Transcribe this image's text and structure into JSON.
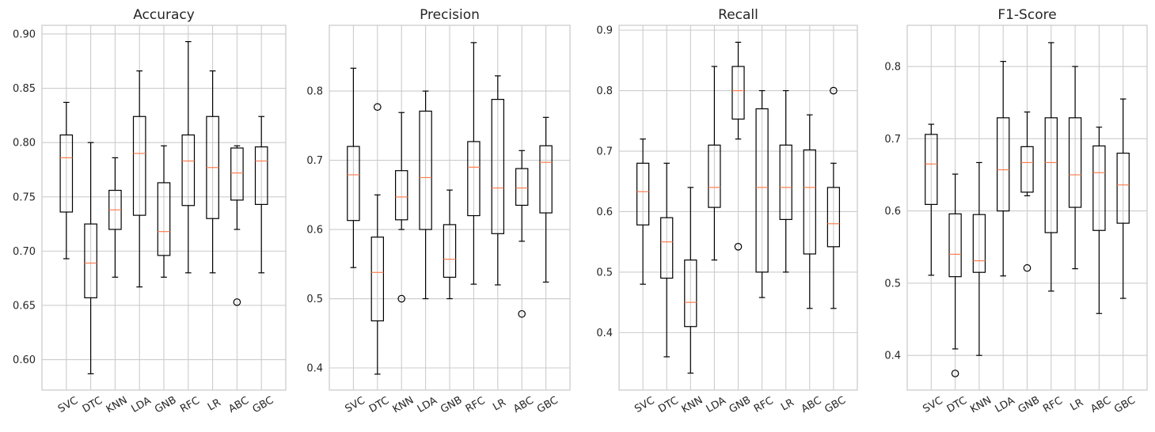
{
  "chart_data": [
    {
      "type": "box",
      "title": "Accuracy",
      "categories": [
        "SVC",
        "DTC",
        "KNN",
        "LDA",
        "GNB",
        "RFC",
        "LR",
        "ABC",
        "GBC"
      ],
      "ylim": [
        0.572,
        0.908
      ],
      "yticks": [
        0.6,
        0.65,
        0.7,
        0.75,
        0.8,
        0.85,
        0.9
      ],
      "ytick_labels": [
        "0.60",
        "0.65",
        "0.70",
        "0.75",
        "0.80",
        "0.85",
        "0.90"
      ],
      "grid": true,
      "boxes": [
        {
          "whislo": 0.693,
          "q1": 0.736,
          "med": 0.786,
          "q3": 0.807,
          "whishi": 0.837,
          "fliers": []
        },
        {
          "whislo": 0.587,
          "q1": 0.657,
          "med": 0.689,
          "q3": 0.725,
          "whishi": 0.8,
          "fliers": []
        },
        {
          "whislo": 0.676,
          "q1": 0.72,
          "med": 0.738,
          "q3": 0.756,
          "whishi": 0.786,
          "fliers": []
        },
        {
          "whislo": 0.667,
          "q1": 0.733,
          "med": 0.79,
          "q3": 0.824,
          "whishi": 0.866,
          "fliers": []
        },
        {
          "whislo": 0.676,
          "q1": 0.696,
          "med": 0.718,
          "q3": 0.763,
          "whishi": 0.797,
          "fliers": []
        },
        {
          "whislo": 0.68,
          "q1": 0.742,
          "med": 0.783,
          "q3": 0.807,
          "whishi": 0.893,
          "fliers": []
        },
        {
          "whislo": 0.68,
          "q1": 0.73,
          "med": 0.777,
          "q3": 0.824,
          "whishi": 0.866,
          "fliers": []
        },
        {
          "whislo": 0.72,
          "q1": 0.747,
          "med": 0.772,
          "q3": 0.795,
          "whishi": 0.797,
          "fliers": [
            0.653
          ]
        },
        {
          "whislo": 0.68,
          "q1": 0.743,
          "med": 0.783,
          "q3": 0.796,
          "whishi": 0.824,
          "fliers": []
        }
      ]
    },
    {
      "type": "box",
      "title": "Precision",
      "categories": [
        "SVC",
        "DTC",
        "KNN",
        "LDA",
        "GNB",
        "RFC",
        "LR",
        "ABC",
        "GBC"
      ],
      "ylim": [
        0.368,
        0.895
      ],
      "yticks": [
        0.4,
        0.5,
        0.6,
        0.7,
        0.8
      ],
      "ytick_labels": [
        "0.4",
        "0.5",
        "0.6",
        "0.7",
        "0.8"
      ],
      "grid": true,
      "boxes": [
        {
          "whislo": 0.545,
          "q1": 0.613,
          "med": 0.679,
          "q3": 0.72,
          "whishi": 0.833,
          "fliers": []
        },
        {
          "whislo": 0.391,
          "q1": 0.468,
          "med": 0.538,
          "q3": 0.589,
          "whishi": 0.65,
          "fliers": [
            0.777
          ]
        },
        {
          "whislo": 0.6,
          "q1": 0.614,
          "med": 0.647,
          "q3": 0.685,
          "whishi": 0.769,
          "fliers": [
            0.5
          ]
        },
        {
          "whislo": 0.5,
          "q1": 0.6,
          "med": 0.675,
          "q3": 0.771,
          "whishi": 0.8,
          "fliers": []
        },
        {
          "whislo": 0.5,
          "q1": 0.531,
          "med": 0.557,
          "q3": 0.607,
          "whishi": 0.657,
          "fliers": []
        },
        {
          "whislo": 0.521,
          "q1": 0.62,
          "med": 0.69,
          "q3": 0.727,
          "whishi": 0.87,
          "fliers": []
        },
        {
          "whislo": 0.52,
          "q1": 0.594,
          "med": 0.66,
          "q3": 0.788,
          "whishi": 0.822,
          "fliers": []
        },
        {
          "whislo": 0.583,
          "q1": 0.635,
          "med": 0.66,
          "q3": 0.688,
          "whishi": 0.714,
          "fliers": [
            0.478
          ]
        },
        {
          "whislo": 0.524,
          "q1": 0.624,
          "med": 0.697,
          "q3": 0.721,
          "whishi": 0.762,
          "fliers": []
        }
      ]
    },
    {
      "type": "box",
      "title": "Recall",
      "categories": [
        "SVC",
        "DTC",
        "KNN",
        "LDA",
        "GNB",
        "RFC",
        "LR",
        "ABC",
        "GBC"
      ],
      "ylim": [
        0.305,
        0.908
      ],
      "yticks": [
        0.4,
        0.5,
        0.6,
        0.7,
        0.8,
        0.9
      ],
      "ytick_labels": [
        "0.4",
        "0.5",
        "0.6",
        "0.7",
        "0.8",
        "0.9"
      ],
      "grid": true,
      "boxes": [
        {
          "whislo": 0.48,
          "q1": 0.578,
          "med": 0.633,
          "q3": 0.68,
          "whishi": 0.72,
          "fliers": []
        },
        {
          "whislo": 0.36,
          "q1": 0.49,
          "med": 0.55,
          "q3": 0.59,
          "whishi": 0.68,
          "fliers": []
        },
        {
          "whislo": 0.333,
          "q1": 0.41,
          "med": 0.45,
          "q3": 0.52,
          "whishi": 0.64,
          "fliers": []
        },
        {
          "whislo": 0.52,
          "q1": 0.607,
          "med": 0.64,
          "q3": 0.71,
          "whishi": 0.84,
          "fliers": []
        },
        {
          "whislo": 0.72,
          "q1": 0.753,
          "med": 0.8,
          "q3": 0.84,
          "whishi": 0.88,
          "fliers": [
            0.542
          ]
        },
        {
          "whislo": 0.458,
          "q1": 0.5,
          "med": 0.64,
          "q3": 0.77,
          "whishi": 0.8,
          "fliers": []
        },
        {
          "whislo": 0.5,
          "q1": 0.587,
          "med": 0.64,
          "q3": 0.71,
          "whishi": 0.8,
          "fliers": []
        },
        {
          "whislo": 0.44,
          "q1": 0.53,
          "med": 0.64,
          "q3": 0.702,
          "whishi": 0.76,
          "fliers": []
        },
        {
          "whislo": 0.44,
          "q1": 0.542,
          "med": 0.58,
          "q3": 0.64,
          "whishi": 0.68,
          "fliers": [
            0.8
          ]
        }
      ]
    },
    {
      "type": "box",
      "title": "F1-Score",
      "categories": [
        "SVC",
        "DTC",
        "KNN",
        "LDA",
        "GNB",
        "RFC",
        "LR",
        "ABC",
        "GBC"
      ],
      "ylim": [
        0.352,
        0.857
      ],
      "yticks": [
        0.4,
        0.5,
        0.6,
        0.7,
        0.8
      ],
      "ytick_labels": [
        "0.4",
        "0.5",
        "0.6",
        "0.7",
        "0.8"
      ],
      "grid": true,
      "boxes": [
        {
          "whislo": 0.511,
          "q1": 0.609,
          "med": 0.665,
          "q3": 0.706,
          "whishi": 0.72,
          "fliers": []
        },
        {
          "whislo": 0.409,
          "q1": 0.509,
          "med": 0.54,
          "q3": 0.596,
          "whishi": 0.651,
          "fliers": [
            0.375
          ]
        },
        {
          "whislo": 0.4,
          "q1": 0.515,
          "med": 0.531,
          "q3": 0.595,
          "whishi": 0.667,
          "fliers": []
        },
        {
          "whislo": 0.51,
          "q1": 0.6,
          "med": 0.657,
          "q3": 0.729,
          "whishi": 0.807,
          "fliers": []
        },
        {
          "whislo": 0.621,
          "q1": 0.626,
          "med": 0.667,
          "q3": 0.689,
          "whishi": 0.737,
          "fliers": [
            0.521
          ]
        },
        {
          "whislo": 0.489,
          "q1": 0.57,
          "med": 0.667,
          "q3": 0.729,
          "whishi": 0.833,
          "fliers": []
        },
        {
          "whislo": 0.52,
          "q1": 0.605,
          "med": 0.65,
          "q3": 0.729,
          "whishi": 0.8,
          "fliers": []
        },
        {
          "whislo": 0.458,
          "q1": 0.573,
          "med": 0.653,
          "q3": 0.69,
          "whishi": 0.716,
          "fliers": []
        },
        {
          "whislo": 0.479,
          "q1": 0.583,
          "med": 0.636,
          "q3": 0.68,
          "whishi": 0.755,
          "fliers": []
        }
      ]
    }
  ],
  "colors": {
    "grid": "#cccccc",
    "spine": "#cccccc",
    "box": "#000000",
    "median": "#ff7f50",
    "text": "#262626",
    "background": "#ffffff"
  }
}
